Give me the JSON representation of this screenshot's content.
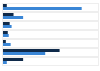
{
  "chart_data": {
    "type": "bar",
    "orientation": "horizontal",
    "categories": [
      null,
      null,
      null,
      null,
      null,
      null,
      null
    ],
    "series": [
      {
        "color": "#0f2a4a",
        "values": [
          5,
          12,
          8,
          6,
          4,
          60,
          22
        ]
      },
      {
        "color": "#3a86d6",
        "values": [
          83,
          22,
          10,
          7,
          9,
          45,
          5
        ]
      }
    ],
    "xlim": [
      0,
      100
    ],
    "grid": false,
    "tick_labels": false
  }
}
